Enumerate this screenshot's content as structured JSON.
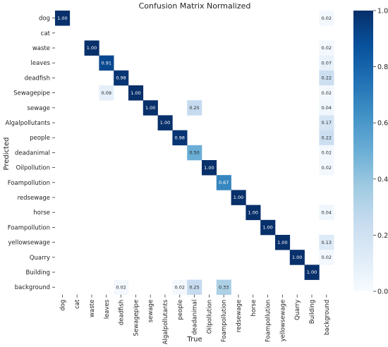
{
  "chart_data": {
    "type": "heatmap",
    "title": "Confusion Matrix Normalized",
    "xlabel": "True",
    "ylabel": "Predicted",
    "x_categories": [
      "dog",
      "cat",
      "waste",
      "leaves",
      "deadfish",
      "Sewagepipe",
      "sewage",
      "Algalpollutants",
      "people",
      "deadanimal",
      "Oilpollution",
      "Foampollution",
      "redsewage",
      "horse",
      "Foampollution",
      "yellowsewage",
      "Quarry",
      "Building",
      "background"
    ],
    "y_categories": [
      "dog",
      "cat",
      "waste",
      "leaves",
      "deadfish",
      "Sewagepipe",
      "sewage",
      "Algalpollutants",
      "people",
      "deadanimal",
      "Oilpollution",
      "Foampollution",
      "redsewage",
      "horse",
      "Foampollution",
      "yellowsewage",
      "Quarry",
      "Building",
      "background"
    ],
    "cells": [
      {
        "row": 0,
        "col": 0,
        "value": 1.0,
        "label": "1.00"
      },
      {
        "row": 0,
        "col": 18,
        "value": 0.02,
        "label": "0.02"
      },
      {
        "row": 2,
        "col": 2,
        "value": 1.0,
        "label": "1.00"
      },
      {
        "row": 2,
        "col": 18,
        "value": 0.02,
        "label": "0.02"
      },
      {
        "row": 3,
        "col": 3,
        "value": 0.91,
        "label": "0.91"
      },
      {
        "row": 3,
        "col": 18,
        "value": 0.07,
        "label": "0.07"
      },
      {
        "row": 4,
        "col": 4,
        "value": 0.98,
        "label": "0.98"
      },
      {
        "row": 4,
        "col": 18,
        "value": 0.22,
        "label": "0.22"
      },
      {
        "row": 5,
        "col": 3,
        "value": 0.09,
        "label": "0.09"
      },
      {
        "row": 5,
        "col": 5,
        "value": 1.0,
        "label": "1.00"
      },
      {
        "row": 5,
        "col": 18,
        "value": 0.02,
        "label": "0.02"
      },
      {
        "row": 6,
        "col": 6,
        "value": 1.0,
        "label": "1.00"
      },
      {
        "row": 6,
        "col": 9,
        "value": 0.25,
        "label": "0.25"
      },
      {
        "row": 6,
        "col": 18,
        "value": 0.04,
        "label": "0.04"
      },
      {
        "row": 7,
        "col": 7,
        "value": 1.0,
        "label": "1.00"
      },
      {
        "row": 7,
        "col": 18,
        "value": 0.17,
        "label": "0.17"
      },
      {
        "row": 8,
        "col": 8,
        "value": 0.98,
        "label": "0.98"
      },
      {
        "row": 8,
        "col": 18,
        "value": 0.22,
        "label": "0.22"
      },
      {
        "row": 9,
        "col": 9,
        "value": 0.5,
        "label": "0.50"
      },
      {
        "row": 9,
        "col": 18,
        "value": 0.02,
        "label": "0.02"
      },
      {
        "row": 10,
        "col": 10,
        "value": 1.0,
        "label": "1.00"
      },
      {
        "row": 10,
        "col": 18,
        "value": 0.02,
        "label": "0.02"
      },
      {
        "row": 11,
        "col": 11,
        "value": 0.67,
        "label": "0.67"
      },
      {
        "row": 12,
        "col": 12,
        "value": 1.0,
        "label": "1.00"
      },
      {
        "row": 13,
        "col": 13,
        "value": 1.0,
        "label": "1.00"
      },
      {
        "row": 13,
        "col": 18,
        "value": 0.04,
        "label": "0.04"
      },
      {
        "row": 14,
        "col": 14,
        "value": 1.0,
        "label": "1.00"
      },
      {
        "row": 15,
        "col": 15,
        "value": 1.0,
        "label": "1.00"
      },
      {
        "row": 15,
        "col": 18,
        "value": 0.13,
        "label": "0.13"
      },
      {
        "row": 16,
        "col": 16,
        "value": 1.0,
        "label": "1.00"
      },
      {
        "row": 16,
        "col": 18,
        "value": 0.02,
        "label": "0.02"
      },
      {
        "row": 17,
        "col": 17,
        "value": 1.0,
        "label": "1.00"
      },
      {
        "row": 18,
        "col": 4,
        "value": 0.02,
        "label": "0.02"
      },
      {
        "row": 18,
        "col": 8,
        "value": 0.02,
        "label": "0.02"
      },
      {
        "row": 18,
        "col": 9,
        "value": 0.25,
        "label": "0.25"
      },
      {
        "row": 18,
        "col": 11,
        "value": 0.33,
        "label": "0.33"
      }
    ],
    "colorbar": {
      "range": [
        0,
        1
      ],
      "ticks": [
        "0.0",
        "0.2",
        "0.4",
        "0.6",
        "0.8",
        "1.0"
      ],
      "low_color": "#f7fbff",
      "mid_color": "#6baed6",
      "high_color": "#08306b"
    },
    "grid": false,
    "legend": "colorbar-right"
  }
}
